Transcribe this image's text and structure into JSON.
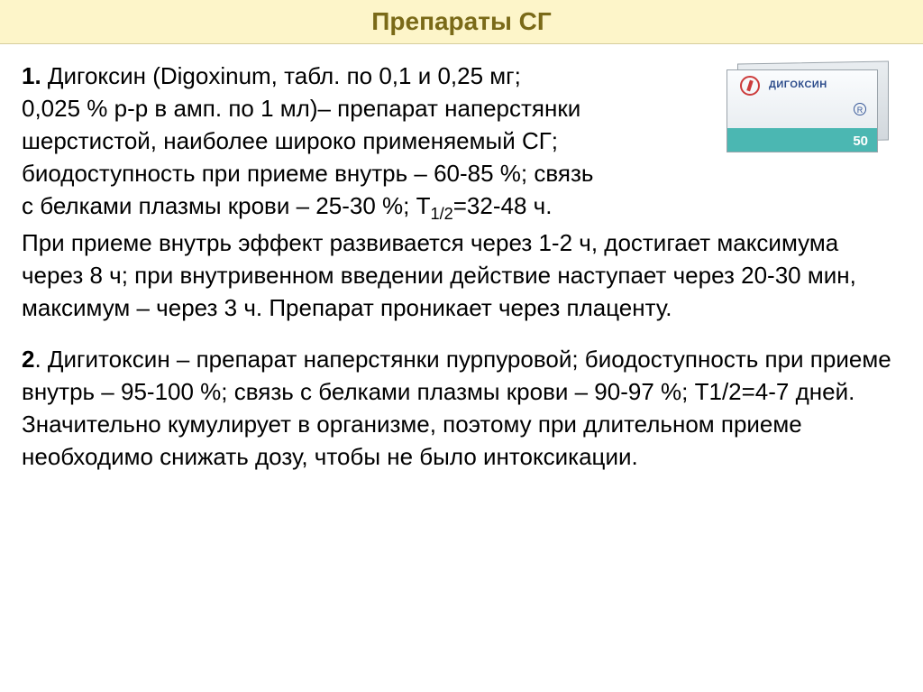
{
  "title": "Препараты СГ",
  "drug1": {
    "heading_num": "1.",
    "name": "Дигоксин (Digoxinum,",
    "line1_tail": "табл. по 0,1 и 0,25 мг;",
    "line2": "0,025 % р-р в амп. по 1 мл)– препарат наперстянки",
    "line3": "шерстистой, наиболее широко применяемый СГ;",
    "line4": "биодоступность при приеме внутрь – 60-85 %; связь",
    "line5a": "с белками плазмы крови – 25-30 %; Т",
    "t_half_sub": "1/2",
    "line5b": "=32-48 ч.",
    "para2": "При приеме внутрь эффект развивается через 1-2 ч, достигает максимума через 8 ч; при внутривенном введении действие наступает через 20-30 мин, максимум – через 3 ч. Препарат проникает через плаценту."
  },
  "drug2": {
    "heading_num": "2",
    "text": ". Дигитоксин – препарат наперстянки пурпуровой; биодоступность при приеме внутрь – 95-100 %; связь с белками плазмы крови – 90-97 %; Т1/2=4-7 дней. Значительно кумулирует в организме, поэтому при длительном приеме необходимо снижать дозу, чтобы не было интоксикации."
  },
  "package": {
    "brand": "ДИГОКСИН",
    "count": "50"
  },
  "style": {
    "title_bg": "#fdf5c9",
    "title_color": "#7a6a18",
    "accent_teal": "#4bb7b2"
  }
}
